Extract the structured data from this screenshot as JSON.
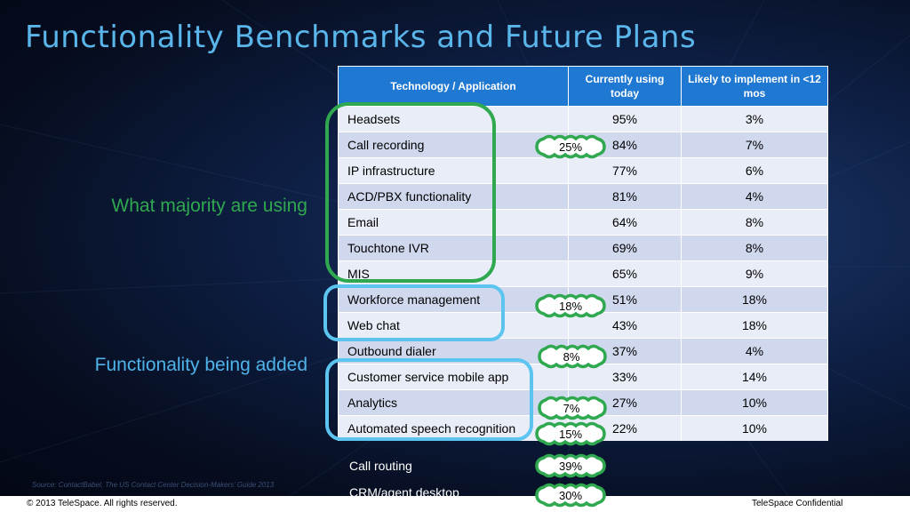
{
  "slide": {
    "title": "Functionality Benchmarks and Future Plans",
    "label_majority": "What majority are using",
    "label_adding": "Functionality being added",
    "source": "Source: ContactBabel, The US Contact Center Decision-Makers’ Guide  2013",
    "copyright": "© 2013 TeleSpace. All rights reserved.",
    "confidential": "TeleSpace Confidential"
  },
  "table": {
    "headers": [
      "Technology / Application",
      "Currently using today",
      "Likely to implement in <12 mos"
    ],
    "rows": [
      {
        "name": "Headsets",
        "current": "95%",
        "likely": "3%"
      },
      {
        "name": "Call recording",
        "current": "84%",
        "likely": "7%"
      },
      {
        "name": "IP infrastructure",
        "current": "77%",
        "likely": "6%"
      },
      {
        "name": "ACD/PBX functionality",
        "current": "81%",
        "likely": "4%"
      },
      {
        "name": "Email",
        "current": "64%",
        "likely": "8%"
      },
      {
        "name": "Touchtone IVR",
        "current": "69%",
        "likely": "8%"
      },
      {
        "name": "MIS",
        "current": "65%",
        "likely": "9%"
      },
      {
        "name": "Workforce management",
        "current": "51%",
        "likely": "18%"
      },
      {
        "name": "Web chat",
        "current": "43%",
        "likely": "18%"
      },
      {
        "name": "Outbound dialer",
        "current": "37%",
        "likely": "4%"
      },
      {
        "name": "Customer service mobile app",
        "current": "33%",
        "likely": "14%"
      },
      {
        "name": "Analytics",
        "current": "27%",
        "likely": "10%"
      },
      {
        "name": "Automated speech recognition",
        "current": "22%",
        "likely": "10%"
      }
    ]
  },
  "extra_items": [
    {
      "name": "Call routing",
      "badge": "39%"
    },
    {
      "name": "CRM/agent desktop",
      "badge": "30%"
    }
  ],
  "badges": {
    "call_recording": "25%",
    "workforce_management": "18%",
    "outbound_dialer": "8%",
    "analytics": "7%",
    "speech_recognition": "15%"
  },
  "colors": {
    "title": "#5ab6ea",
    "header_bg": "#1f78d1",
    "green_outline": "#2fa84f",
    "blue_outline": "#5bc4ef"
  }
}
